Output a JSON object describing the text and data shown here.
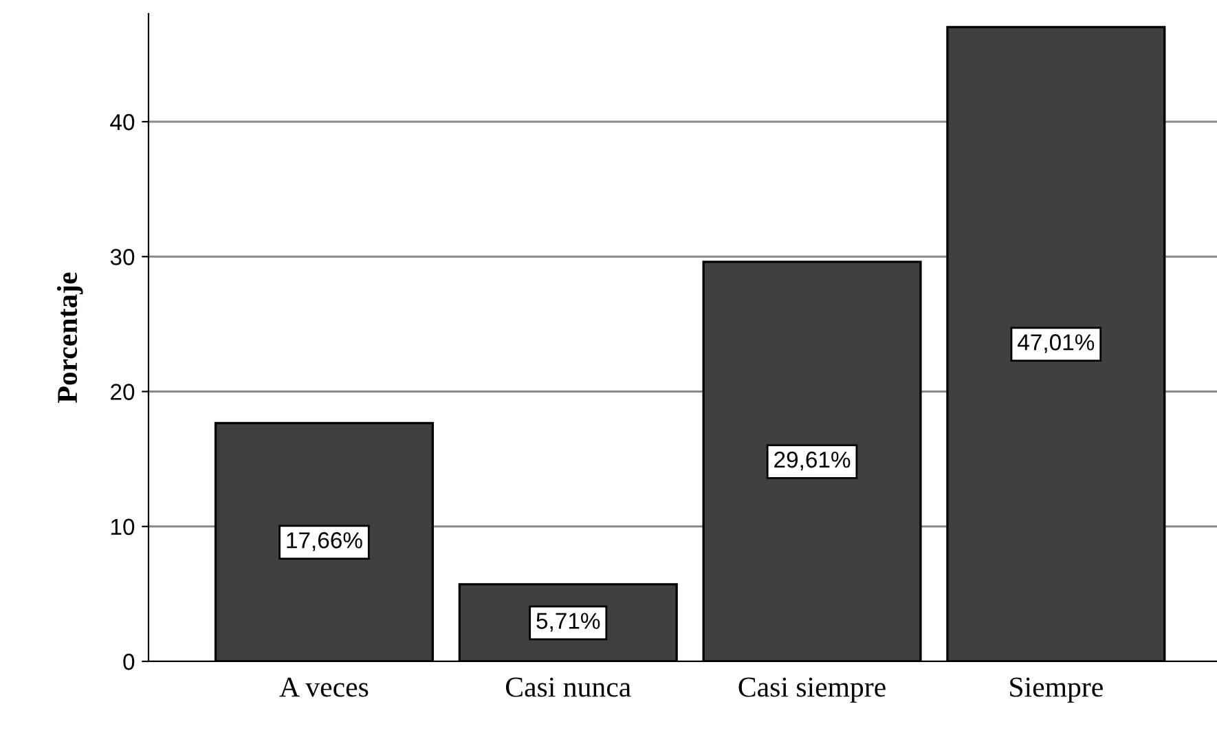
{
  "chart_data": {
    "type": "bar",
    "ylabel": "Porcentaje",
    "categories": [
      "A veces",
      "Casi nunca",
      "Casi siempre",
      "Siempre"
    ],
    "values": [
      17.66,
      5.71,
      29.61,
      47.01
    ],
    "value_labels": [
      "17,66%",
      "5,71%",
      "29,61%",
      "47,01%"
    ],
    "color": "#404040",
    "ylim": [
      0,
      48
    ],
    "yticks": [
      0,
      10,
      20,
      30,
      40
    ],
    "grid": "y",
    "legend": false
  }
}
